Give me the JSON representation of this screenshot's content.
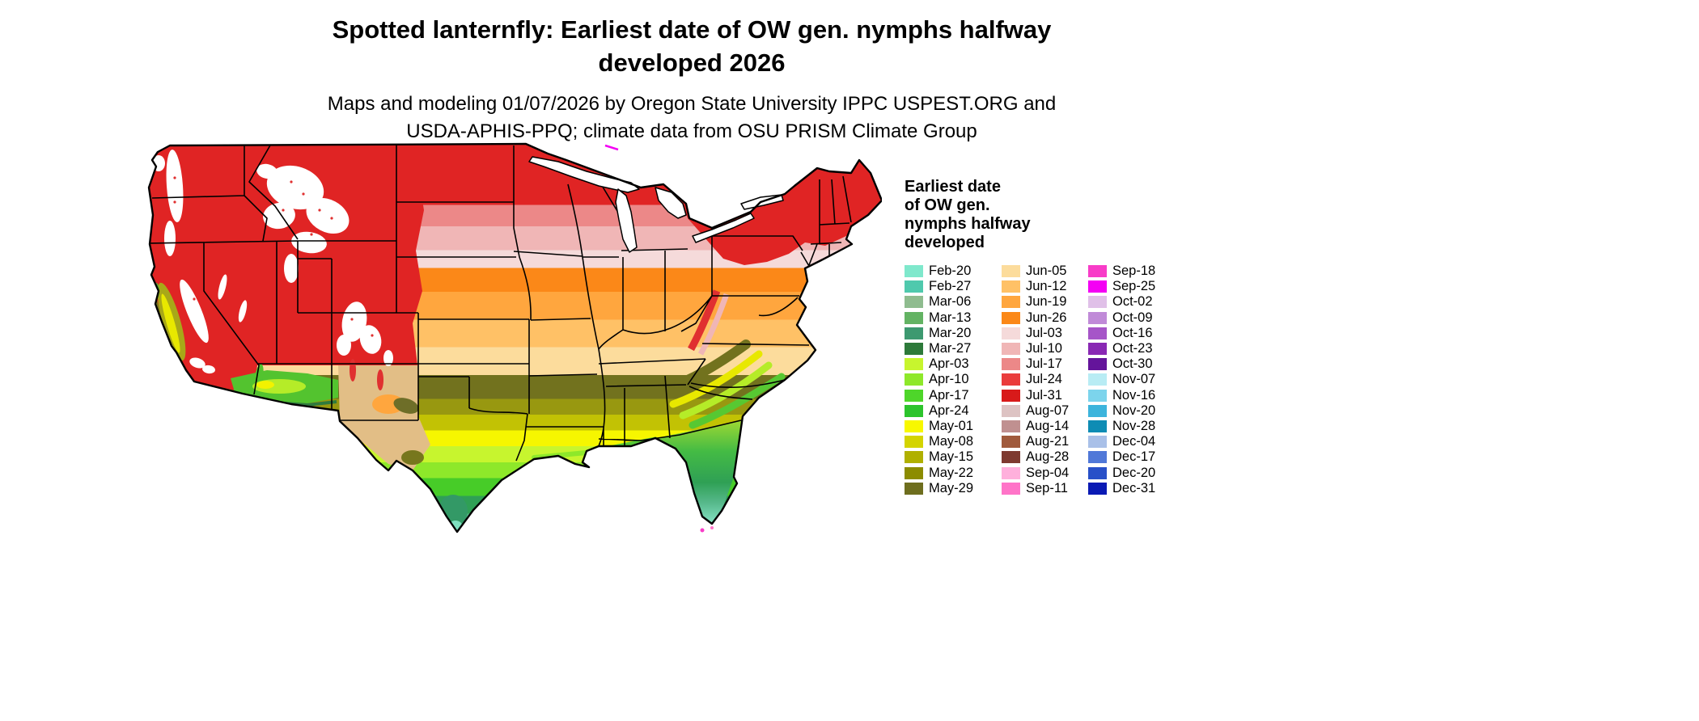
{
  "header": {
    "title_line1": "Spotted lanternfly: Earliest date of OW gen. nymphs halfway",
    "title_line2": "developed 2026",
    "subtitle_line1": "Maps and modeling 01/07/2026 by Oregon State University IPPC USPEST.ORG and",
    "subtitle_line2": "USDA-APHIS-PPQ; climate data from OSU PRISM Climate Group"
  },
  "legend": {
    "title_lines": [
      "Earliest date",
      "of OW gen.",
      "nymphs halfway",
      "developed"
    ],
    "columns": [
      {
        "entries": [
          {
            "label": "Feb-20",
            "color": "#7fe8cc"
          },
          {
            "label": "Feb-27",
            "color": "#4fc9ad"
          },
          {
            "label": "Mar-06",
            "color": "#8fbc8f"
          },
          {
            "label": "Mar-13",
            "color": "#63b363"
          },
          {
            "label": "Mar-20",
            "color": "#3d9970"
          },
          {
            "label": "Mar-27",
            "color": "#2d7a3a"
          },
          {
            "label": "Apr-03",
            "color": "#c7f52e"
          },
          {
            "label": "Apr-10",
            "color": "#8ee82a"
          },
          {
            "label": "Apr-17",
            "color": "#4ed62a"
          },
          {
            "label": "Apr-24",
            "color": "#2cc42c"
          },
          {
            "label": "May-01",
            "color": "#f8f800"
          },
          {
            "label": "May-08",
            "color": "#d4d400"
          },
          {
            "label": "May-15",
            "color": "#b0b000"
          },
          {
            "label": "May-22",
            "color": "#8c8c00"
          },
          {
            "label": "May-29",
            "color": "#6e6e1e"
          }
        ]
      },
      {
        "entries": [
          {
            "label": "Jun-05",
            "color": "#fcdc9c"
          },
          {
            "label": "Jun-12",
            "color": "#ffc166"
          },
          {
            "label": "Jun-19",
            "color": "#ffa63e"
          },
          {
            "label": "Jun-26",
            "color": "#fb8818"
          },
          {
            "label": "Jul-03",
            "color": "#f5dada"
          },
          {
            "label": "Jul-10",
            "color": "#f0b6b6"
          },
          {
            "label": "Jul-17",
            "color": "#ec8888"
          },
          {
            "label": "Jul-24",
            "color": "#ea3c3c"
          },
          {
            "label": "Jul-31",
            "color": "#d81a1a"
          },
          {
            "label": "Aug-07",
            "color": "#ddc3c3"
          },
          {
            "label": "Aug-14",
            "color": "#c09090"
          },
          {
            "label": "Aug-21",
            "color": "#a05a3c"
          },
          {
            "label": "Aug-28",
            "color": "#7e3a30"
          },
          {
            "label": "Sep-04",
            "color": "#ffb0dc"
          },
          {
            "label": "Sep-11",
            "color": "#ff74c8"
          }
        ]
      },
      {
        "entries": [
          {
            "label": "Sep-18",
            "color": "#f83cc8"
          },
          {
            "label": "Sep-25",
            "color": "#f400f4"
          },
          {
            "label": "Oct-02",
            "color": "#e0c0e8"
          },
          {
            "label": "Oct-09",
            "color": "#c08ad8"
          },
          {
            "label": "Oct-16",
            "color": "#a655c8"
          },
          {
            "label": "Oct-23",
            "color": "#8928b4"
          },
          {
            "label": "Oct-30",
            "color": "#64149b"
          },
          {
            "label": "Nov-07",
            "color": "#b8ecf4"
          },
          {
            "label": "Nov-16",
            "color": "#7cd4ec"
          },
          {
            "label": "Nov-20",
            "color": "#3cb4dc"
          },
          {
            "label": "Nov-28",
            "color": "#0e8cb4"
          },
          {
            "label": "Dec-04",
            "color": "#a9c0e8"
          },
          {
            "label": "Dec-17",
            "color": "#5078d8"
          },
          {
            "label": "Dec-20",
            "color": "#2850c8"
          },
          {
            "label": "Dec-31",
            "color": "#0a1ab4"
          }
        ]
      }
    ]
  },
  "map": {
    "bands": [
      {
        "from": 0,
        "to": 0.17,
        "color": "#e02424"
      },
      {
        "from": 0.17,
        "to": 0.225,
        "color": "#ec8888"
      },
      {
        "from": 0.225,
        "to": 0.285,
        "color": "#f0b6b6"
      },
      {
        "from": 0.285,
        "to": 0.33,
        "color": "#f5dada"
      },
      {
        "from": 0.33,
        "to": 0.39,
        "color": "#fb8818"
      },
      {
        "from": 0.39,
        "to": 0.46,
        "color": "#ffa63e"
      },
      {
        "from": 0.46,
        "to": 0.53,
        "color": "#ffc166"
      },
      {
        "from": 0.53,
        "to": 0.6,
        "color": "#fcdc9c"
      },
      {
        "from": 0.6,
        "to": 0.66,
        "color": "#72721e"
      },
      {
        "from": 0.66,
        "to": 0.7,
        "color": "#989810"
      },
      {
        "from": 0.7,
        "to": 0.74,
        "color": "#c2c204"
      },
      {
        "from": 0.74,
        "to": 0.78,
        "color": "#f6f600"
      },
      {
        "from": 0.78,
        "to": 0.82,
        "color": "#c7f52e"
      },
      {
        "from": 0.82,
        "to": 0.86,
        "color": "#8ee82a"
      },
      {
        "from": 0.86,
        "to": 0.905,
        "color": "#47cc28"
      },
      {
        "from": 0.905,
        "to": 0.95,
        "color": "#2fa055"
      },
      {
        "from": 0.95,
        "to": 1,
        "color": "#57b98c"
      }
    ]
  }
}
